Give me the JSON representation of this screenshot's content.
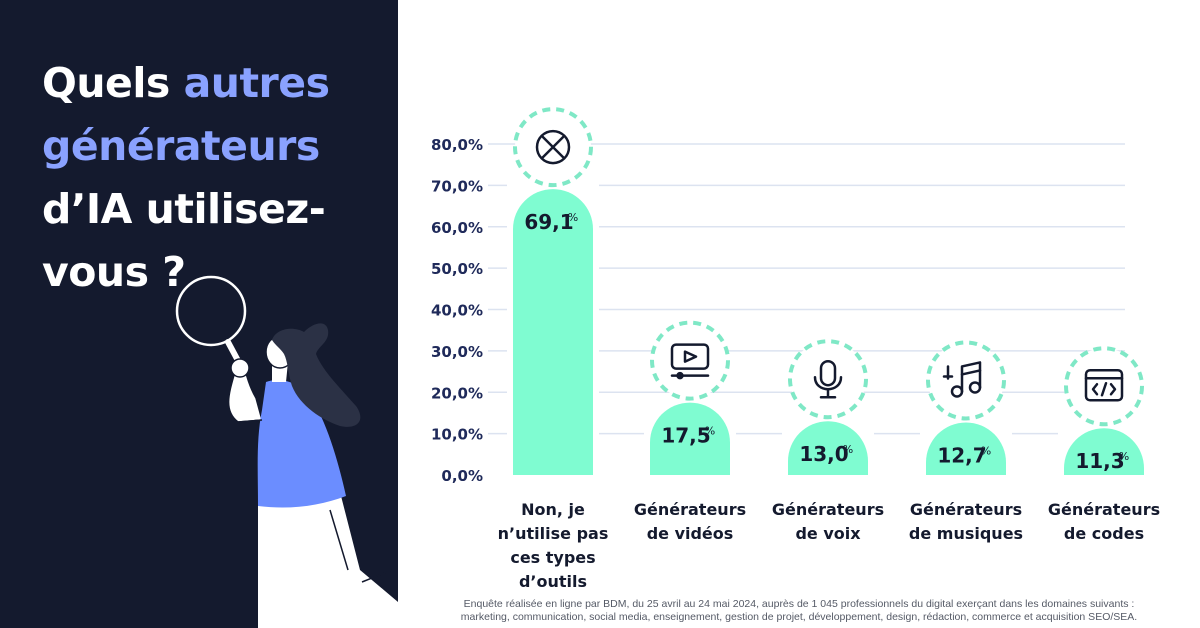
{
  "headline": {
    "line1_plain": "Quels ",
    "line1_accent": "autres",
    "line2_accent": "générateurs",
    "line3": "d’IA utilisez-",
    "line4": "vous ?"
  },
  "colors": {
    "panel": "#141a2e",
    "accent": "#8aa2ff",
    "bar": "#7ffcd1",
    "icon_ring": "#7fe8c6",
    "axis_text": "#1f2a5a",
    "gridline": "#dce3f0"
  },
  "footnote": {
    "line1": "Enquête réalisée en ligne par BDM, du 25 avril au 24 mai 2024, auprès de 1 045 professionnels du digital exerçant dans les domaines suivants :",
    "line2": "marketing, communication, social media, enseignement, gestion de projet, développement, design, rédaction, commerce et acquisition SEO/SEA."
  },
  "chart_data": {
    "type": "bar",
    "categories": [
      [
        "Non, je",
        "n’utilise pas",
        "ces types",
        "d’outils"
      ],
      [
        "Générateurs",
        "de vidéos"
      ],
      [
        "Générateurs",
        "de voix"
      ],
      [
        "Générateurs",
        "de musiques"
      ],
      [
        "Générateurs",
        "de codes"
      ]
    ],
    "values": [
      69.1,
      17.5,
      13.0,
      12.7,
      11.3
    ],
    "value_labels": [
      "69,1",
      "17,5",
      "13,0",
      "12,7",
      "11,3"
    ],
    "value_suffix": "%",
    "icons": [
      "cross-circle-icon",
      "video-play-icon",
      "microphone-icon",
      "music-notes-icon",
      "code-window-icon"
    ],
    "ylim": [
      0,
      80
    ],
    "yticks": [
      "0,0%",
      "10,0%",
      "20,0%",
      "30,0%",
      "40,0%",
      "50,0%",
      "60,0%",
      "70,0%",
      "80,0%"
    ],
    "grid": true,
    "title": "",
    "xlabel": "",
    "ylabel": ""
  }
}
